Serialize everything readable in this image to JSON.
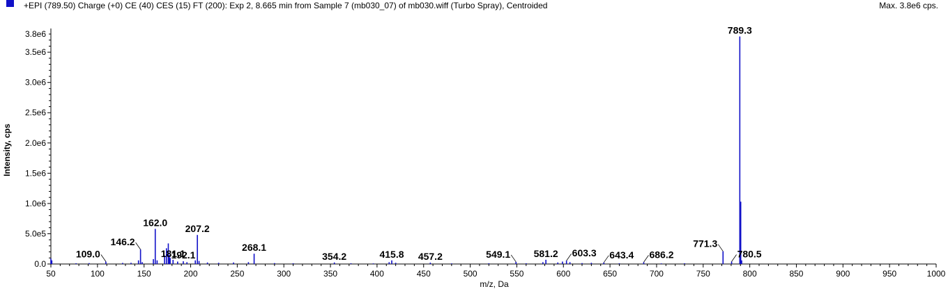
{
  "header": {
    "legend_color": "#1010c8",
    "title": "+EPI (789.50) Charge (+0) CE (40) CES (15) FT (200): Exp 2, 8.665 min from Sample 7 (mb030_07) of mb030.wiff (Turbo Spray), Centroided",
    "max_text": "Max. 3.8e6 cps."
  },
  "chart_data": {
    "type": "bar",
    "xlabel": "m/z, Da",
    "ylabel": "Intensity, cps",
    "xlim": [
      50,
      1000
    ],
    "ylim": [
      0,
      3800000
    ],
    "x_ticks": [
      50,
      100,
      150,
      200,
      250,
      300,
      350,
      400,
      450,
      500,
      550,
      600,
      650,
      700,
      750,
      800,
      850,
      900,
      950,
      1000
    ],
    "y_ticks": [
      {
        "value": 0,
        "label": "0.0"
      },
      {
        "value": 500000,
        "label": "5.0e5"
      },
      {
        "value": 1000000,
        "label": "1.0e6"
      },
      {
        "value": 1500000,
        "label": "1.5e6"
      },
      {
        "value": 2000000,
        "label": "2.0e6"
      },
      {
        "value": 2500000,
        "label": "2.5e6"
      },
      {
        "value": 3000000,
        "label": "3.0e6"
      },
      {
        "value": 3500000,
        "label": "3.5e6"
      },
      {
        "value": 3800000,
        "label": "3.8e6"
      }
    ],
    "series_color": "#1010c8",
    "peaks": [
      {
        "mz": 50.0,
        "intensity": 90000
      },
      {
        "mz": 51.0,
        "intensity": 60000
      },
      {
        "mz": 77.0,
        "intensity": 12000
      },
      {
        "mz": 91.0,
        "intensity": 15000
      },
      {
        "mz": 109.0,
        "intensity": 40000
      },
      {
        "mz": 127.0,
        "intensity": 18000
      },
      {
        "mz": 136.0,
        "intensity": 20000
      },
      {
        "mz": 144.0,
        "intensity": 60000
      },
      {
        "mz": 146.2,
        "intensity": 240000
      },
      {
        "mz": 148.0,
        "intensity": 30000
      },
      {
        "mz": 160.0,
        "intensity": 80000
      },
      {
        "mz": 162.0,
        "intensity": 580000
      },
      {
        "mz": 164.0,
        "intensity": 60000
      },
      {
        "mz": 172.0,
        "intensity": 140000
      },
      {
        "mz": 174.0,
        "intensity": 260000
      },
      {
        "mz": 176.0,
        "intensity": 340000
      },
      {
        "mz": 177.0,
        "intensity": 150000
      },
      {
        "mz": 178.0,
        "intensity": 100000
      },
      {
        "mz": 181.1,
        "intensity": 70000
      },
      {
        "mz": 186.0,
        "intensity": 40000
      },
      {
        "mz": 192.1,
        "intensity": 45000
      },
      {
        "mz": 196.0,
        "intensity": 30000
      },
      {
        "mz": 205.0,
        "intensity": 60000
      },
      {
        "mz": 207.2,
        "intensity": 480000
      },
      {
        "mz": 209.0,
        "intensity": 50000
      },
      {
        "mz": 218.0,
        "intensity": 25000
      },
      {
        "mz": 230.0,
        "intensity": 20000
      },
      {
        "mz": 246.0,
        "intensity": 25000
      },
      {
        "mz": 262.0,
        "intensity": 30000
      },
      {
        "mz": 268.1,
        "intensity": 170000
      },
      {
        "mz": 290.0,
        "intensity": 15000
      },
      {
        "mz": 310.0,
        "intensity": 12000
      },
      {
        "mz": 354.2,
        "intensity": 25000
      },
      {
        "mz": 372.0,
        "intensity": 12000
      },
      {
        "mz": 396.0,
        "intensity": 10000
      },
      {
        "mz": 413.0,
        "intensity": 30000
      },
      {
        "mz": 415.8,
        "intensity": 60000
      },
      {
        "mz": 420.0,
        "intensity": 20000
      },
      {
        "mz": 457.2,
        "intensity": 22000
      },
      {
        "mz": 480.0,
        "intensity": 10000
      },
      {
        "mz": 520.0,
        "intensity": 12000
      },
      {
        "mz": 549.1,
        "intensity": 35000
      },
      {
        "mz": 560.0,
        "intensity": 12000
      },
      {
        "mz": 578.0,
        "intensity": 30000
      },
      {
        "mz": 581.2,
        "intensity": 70000
      },
      {
        "mz": 594.0,
        "intensity": 25000
      },
      {
        "mz": 599.0,
        "intensity": 40000
      },
      {
        "mz": 603.3,
        "intensity": 55000
      },
      {
        "mz": 607.0,
        "intensity": 30000
      },
      {
        "mz": 620.0,
        "intensity": 15000
      },
      {
        "mz": 630.0,
        "intensity": 20000
      },
      {
        "mz": 643.4,
        "intensity": 25000
      },
      {
        "mz": 660.0,
        "intensity": 12000
      },
      {
        "mz": 686.2,
        "intensity": 30000
      },
      {
        "mz": 705.0,
        "intensity": 10000
      },
      {
        "mz": 730.0,
        "intensity": 12000
      },
      {
        "mz": 771.3,
        "intensity": 210000
      },
      {
        "mz": 780.5,
        "intensity": 40000
      },
      {
        "mz": 789.3,
        "intensity": 3760000
      },
      {
        "mz": 790.3,
        "intensity": 1030000
      },
      {
        "mz": 791.3,
        "intensity": 60000
      }
    ],
    "labels": [
      {
        "text": "109.0",
        "mz": 109.0,
        "side": "left"
      },
      {
        "text": "146.2",
        "mz": 146.2,
        "side": "left"
      },
      {
        "text": "162.0",
        "mz": 162.0,
        "side": "top"
      },
      {
        "text": "181.1",
        "mz": 181.1,
        "side": "top-low"
      },
      {
        "text": "192.1",
        "mz": 192.1,
        "side": "top-low"
      },
      {
        "text": "207.2",
        "mz": 207.2,
        "side": "top"
      },
      {
        "text": "268.1",
        "mz": 268.1,
        "side": "top"
      },
      {
        "text": "354.2",
        "mz": 354.2,
        "side": "top"
      },
      {
        "text": "415.8",
        "mz": 415.8,
        "side": "top"
      },
      {
        "text": "457.2",
        "mz": 457.2,
        "side": "top"
      },
      {
        "text": "549.1",
        "mz": 549.1,
        "side": "left"
      },
      {
        "text": "581.2",
        "mz": 581.2,
        "side": "top"
      },
      {
        "text": "603.3",
        "mz": 603.3,
        "side": "right"
      },
      {
        "text": "643.4",
        "mz": 643.4,
        "side": "right"
      },
      {
        "text": "686.2",
        "mz": 686.2,
        "side": "right"
      },
      {
        "text": "771.3",
        "mz": 771.3,
        "side": "left"
      },
      {
        "text": "780.5",
        "mz": 780.5,
        "side": "right"
      },
      {
        "text": "789.3",
        "mz": 789.3,
        "side": "top"
      }
    ]
  }
}
